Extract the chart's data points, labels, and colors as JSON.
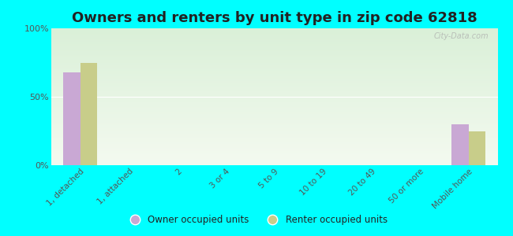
{
  "title": "Owners and renters by unit type in zip code 62818",
  "categories": [
    "1, detached",
    "1, attached",
    "2",
    "3 or 4",
    "5 to 9",
    "10 to 19",
    "20 to 49",
    "50 or more",
    "Mobile home"
  ],
  "owner_values": [
    68,
    0,
    0,
    0,
    0,
    0,
    0,
    0,
    30
  ],
  "renter_values": [
    75,
    0,
    0,
    0,
    0,
    0,
    0,
    0,
    25
  ],
  "owner_color": "#c9a8d4",
  "renter_color": "#c8cd8a",
  "background_color": "#00ffff",
  "plot_bg_top": "#daf0d8",
  "plot_bg_bottom": "#f4faf0",
  "ylim": [
    0,
    100
  ],
  "bar_width": 0.35,
  "title_fontsize": 13,
  "watermark": "City-Data.com",
  "legend_owner": "Owner occupied units",
  "legend_renter": "Renter occupied units"
}
